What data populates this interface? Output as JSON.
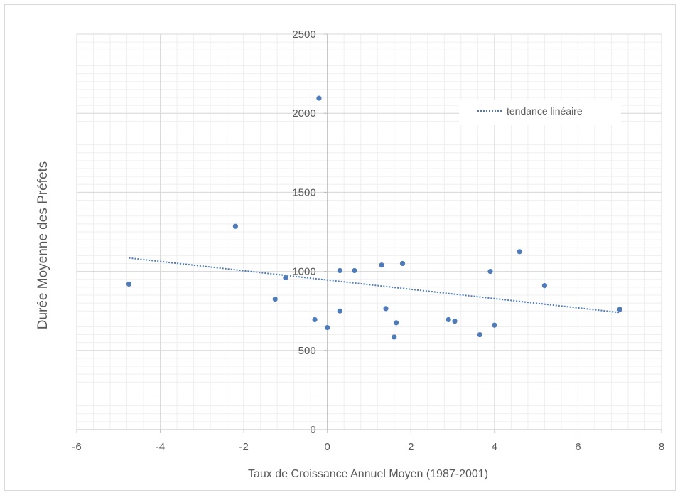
{
  "chart_data": {
    "type": "scatter",
    "title": "",
    "xlabel": "Taux de Croissance Annuel Moyen (1987-2001)",
    "ylabel": "Durée Moyenne des Préfets",
    "xlim": [
      -6,
      8
    ],
    "ylim": [
      0,
      2500
    ],
    "x_ticks": [
      -6,
      -4,
      -2,
      0,
      2,
      4,
      6,
      8
    ],
    "y_ticks": [
      0,
      500,
      1000,
      1500,
      2000,
      2500
    ],
    "grid": true,
    "minor_grid": true,
    "legend_position": "top-right",
    "points_color": "#4f7cb8",
    "trend_color": "#4f7cb8",
    "points": [
      {
        "x": -4.75,
        "y": 920
      },
      {
        "x": -2.2,
        "y": 1285
      },
      {
        "x": -1.25,
        "y": 825
      },
      {
        "x": -1.0,
        "y": 960
      },
      {
        "x": -0.3,
        "y": 695
      },
      {
        "x": -0.2,
        "y": 2095
      },
      {
        "x": 0.0,
        "y": 645
      },
      {
        "x": 0.3,
        "y": 750
      },
      {
        "x": 0.3,
        "y": 1005
      },
      {
        "x": 0.65,
        "y": 1005
      },
      {
        "x": 1.3,
        "y": 1040
      },
      {
        "x": 1.4,
        "y": 765
      },
      {
        "x": 1.6,
        "y": 585
      },
      {
        "x": 1.65,
        "y": 675
      },
      {
        "x": 1.8,
        "y": 1050
      },
      {
        "x": 2.9,
        "y": 695
      },
      {
        "x": 3.05,
        "y": 685
      },
      {
        "x": 3.65,
        "y": 600
      },
      {
        "x": 3.9,
        "y": 1000
      },
      {
        "x": 4.0,
        "y": 660
      },
      {
        "x": 4.6,
        "y": 1125
      },
      {
        "x": 5.2,
        "y": 910
      },
      {
        "x": 7.0,
        "y": 760
      }
    ],
    "trendline": {
      "label": "tendance linéaire",
      "x_start": -4.75,
      "y_start": 1085,
      "x_end": 7.0,
      "y_end": 740
    }
  }
}
